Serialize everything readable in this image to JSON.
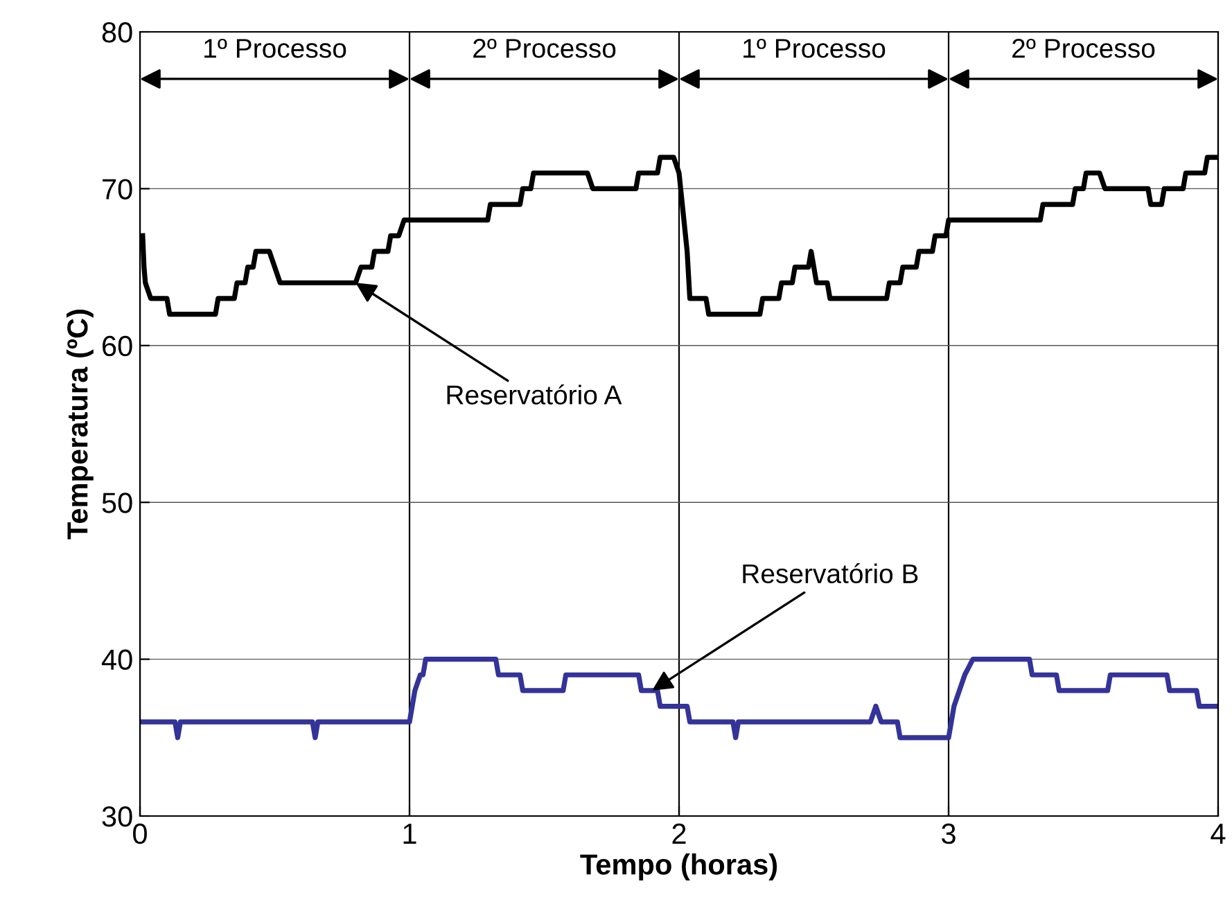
{
  "chart_data": {
    "type": "line",
    "xlabel": "Tempo (horas)",
    "ylabel": "Temperatura (ºC)",
    "xlim": [
      0,
      4
    ],
    "xticks": [
      0,
      1,
      2,
      3,
      4
    ],
    "ylim": [
      30,
      80
    ],
    "yticks": [
      30,
      40,
      50,
      60,
      70,
      80
    ],
    "grid": true,
    "legend": false,
    "marker": "none",
    "line_style": "solid",
    "series": [
      {
        "color": "#000000",
        "x": [
          0.01,
          0.015,
          0.02,
          0.04,
          0.1,
          0.11,
          0.28,
          0.29,
          0.35,
          0.36,
          0.39,
          0.4,
          0.42,
          0.43,
          0.48,
          0.52,
          0.8,
          0.82,
          0.86,
          0.87,
          0.92,
          0.93,
          0.96,
          0.98,
          1.29,
          1.3,
          1.41,
          1.42,
          1.45,
          1.46,
          1.66,
          1.68,
          1.84,
          1.85,
          1.92,
          1.93,
          1.98,
          2.0,
          2.03,
          2.04,
          2.1,
          2.11,
          2.3,
          2.31,
          2.37,
          2.38,
          2.42,
          2.43,
          2.48,
          2.49,
          2.51,
          2.55,
          2.56,
          2.77,
          2.78,
          2.82,
          2.83,
          2.88,
          2.89,
          2.94,
          2.95,
          2.99,
          3.0,
          3.34,
          3.35,
          3.46,
          3.47,
          3.5,
          3.51,
          3.56,
          3.58,
          3.74,
          3.75,
          3.79,
          3.8,
          3.87,
          3.88,
          3.95,
          3.96,
          4.0
        ],
        "values": [
          67,
          65,
          64,
          63,
          63,
          62,
          62,
          63,
          63,
          64,
          64,
          65,
          65,
          66,
          66,
          64,
          64,
          65,
          65,
          66,
          66,
          67,
          67,
          68,
          68,
          69,
          69,
          70,
          70,
          71,
          71,
          70,
          70,
          71,
          71,
          72,
          72,
          71,
          66,
          63,
          63,
          62,
          62,
          63,
          63,
          64,
          64,
          65,
          65,
          66,
          64,
          64,
          63,
          63,
          64,
          64,
          65,
          65,
          66,
          66,
          67,
          67,
          68,
          68,
          69,
          69,
          70,
          70,
          71,
          71,
          70,
          70,
          69,
          69,
          70,
          70,
          71,
          71,
          72,
          72
        ]
      },
      {
        "color": "#333399",
        "x": [
          0.0,
          0.13,
          0.14,
          0.15,
          0.64,
          0.65,
          0.66,
          1.0,
          1.02,
          1.04,
          1.05,
          1.06,
          1.32,
          1.33,
          1.41,
          1.42,
          1.57,
          1.58,
          1.85,
          1.86,
          1.92,
          1.93,
          2.03,
          2.04,
          2.2,
          2.21,
          2.22,
          2.71,
          2.73,
          2.75,
          2.81,
          2.82,
          3.0,
          3.02,
          3.06,
          3.09,
          3.3,
          3.31,
          3.4,
          3.41,
          3.59,
          3.6,
          3.81,
          3.82,
          3.92,
          3.93,
          4.0
        ],
        "values": [
          36,
          36,
          35,
          36,
          36,
          35,
          36,
          36,
          38,
          39,
          39,
          40,
          40,
          39,
          39,
          38,
          38,
          39,
          39,
          38,
          38,
          37,
          37,
          36,
          36,
          35,
          36,
          36,
          37,
          36,
          36,
          35,
          35,
          37,
          39,
          40,
          40,
          39,
          39,
          38,
          38,
          39,
          39,
          38,
          38,
          37,
          37
        ]
      }
    ],
    "annotations": [
      "1º Processo",
      "2º Processo",
      "1º Processo",
      "2º Processo",
      {
        "text": "Reservatório A",
        "x": 0.8,
        "y": 64
      },
      {
        "text": "Reservatório B",
        "x": 1.9,
        "y": 38
      }
    ]
  }
}
